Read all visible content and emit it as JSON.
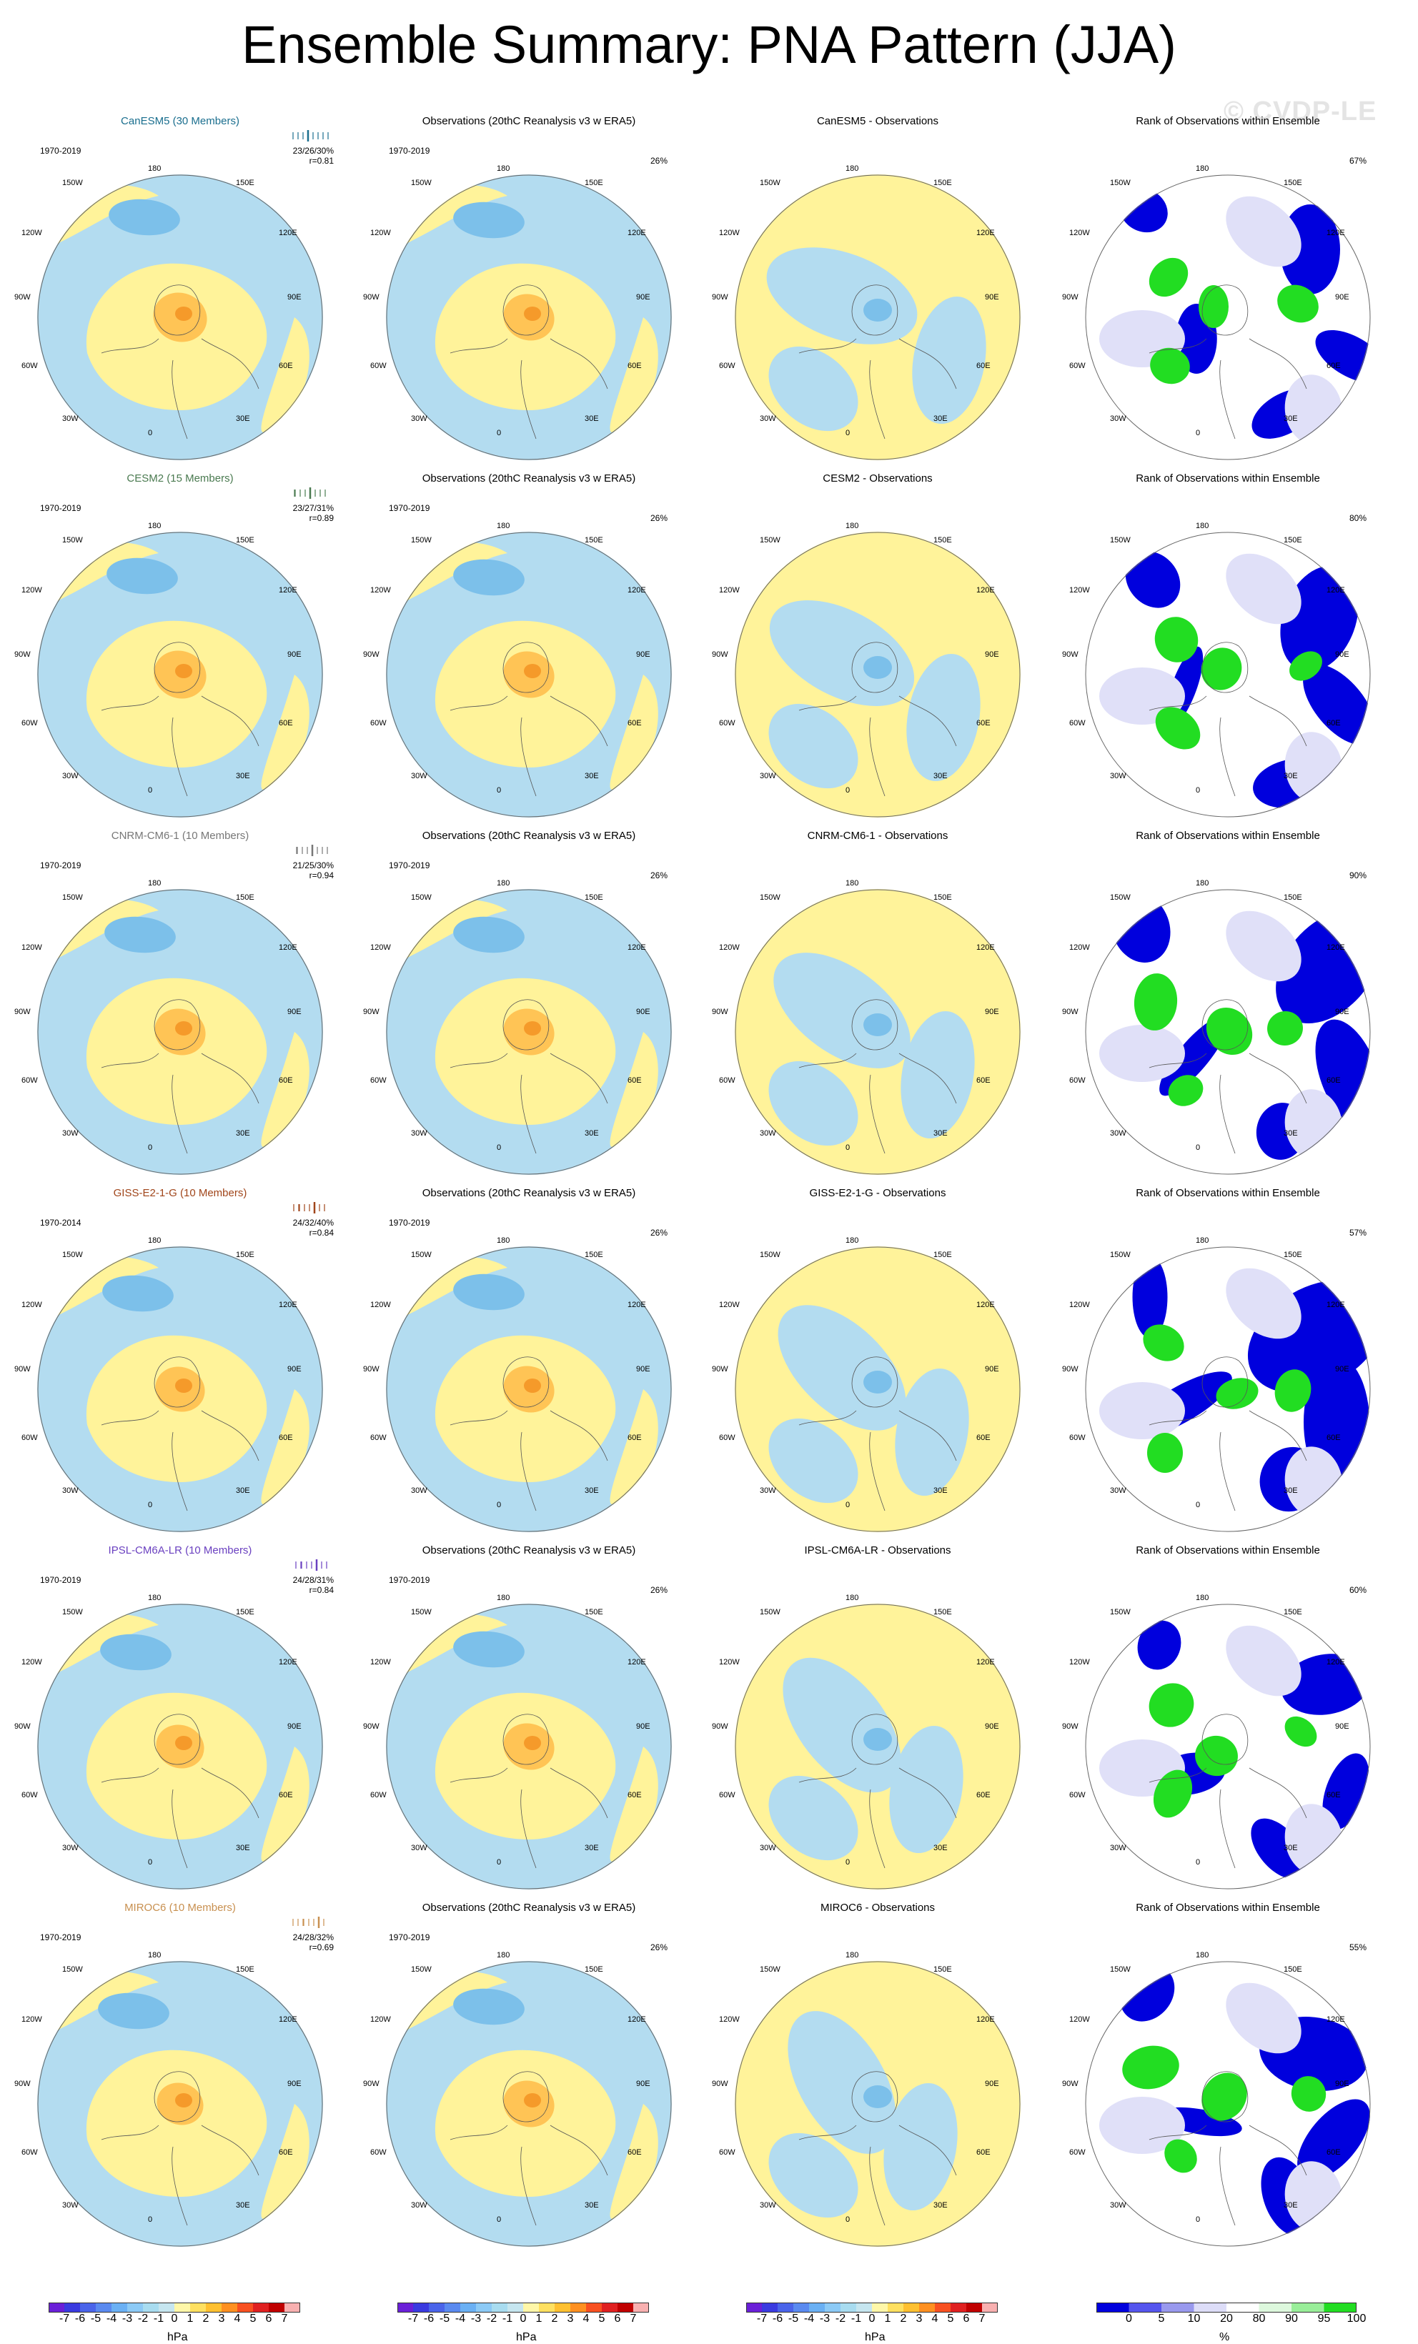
{
  "page": {
    "title": "Ensemble Summary: PNA Pattern (JJA)",
    "watermark": "© CVDP-LE"
  },
  "globe_labels": [
    "180",
    "150W",
    "150E",
    "120W",
    "120E",
    "90W",
    "90E",
    "60W",
    "60E",
    "30W",
    "30E",
    "0"
  ],
  "rows": [
    {
      "model": "CanESM5 (30 Members)",
      "model_color": "#1a6e8e",
      "period": "1970-2019",
      "stats": "23/26/30%",
      "r": "r=0.81",
      "obs_title": "Observations (20thC Reanalysis v3 w ERA5)",
      "obs_period": "1970-2019",
      "obs_pct": "26%",
      "diff_title": "CanESM5 - Observations",
      "rank_title": "Rank of Observations within Ensemble",
      "rank_pct": "67%"
    },
    {
      "model": "CESM2 (15 Members)",
      "model_color": "#4a7a50",
      "period": "1970-2019",
      "stats": "23/27/31%",
      "r": "r=0.89",
      "obs_title": "Observations (20thC Reanalysis v3 w ERA5)",
      "obs_period": "1970-2019",
      "obs_pct": "26%",
      "diff_title": "CESM2 - Observations",
      "rank_title": "Rank of Observations within Ensemble",
      "rank_pct": "80%"
    },
    {
      "model": "CNRM-CM6-1 (10 Members)",
      "model_color": "#777777",
      "period": "1970-2019",
      "stats": "21/25/30%",
      "r": "r=0.94",
      "obs_title": "Observations (20thC Reanalysis v3 w ERA5)",
      "obs_period": "1970-2019",
      "obs_pct": "26%",
      "diff_title": "CNRM-CM6-1 - Observations",
      "rank_title": "Rank of Observations within Ensemble",
      "rank_pct": "90%"
    },
    {
      "model": "GISS-E2-1-G (10 Members)",
      "model_color": "#a0451a",
      "period": "1970-2014",
      "stats": "24/32/40%",
      "r": "r=0.84",
      "obs_title": "Observations (20thC Reanalysis v3 w ERA5)",
      "obs_period": "1970-2019",
      "obs_pct": "26%",
      "diff_title": "GISS-E2-1-G - Observations",
      "rank_title": "Rank of Observations within Ensemble",
      "rank_pct": "57%"
    },
    {
      "model": "IPSL-CM6A-LR (10 Members)",
      "model_color": "#6a40c0",
      "period": "1970-2019",
      "stats": "24/28/31%",
      "r": "r=0.84",
      "obs_title": "Observations (20thC Reanalysis v3 w ERA5)",
      "obs_period": "1970-2019",
      "obs_pct": "26%",
      "diff_title": "IPSL-CM6A-LR - Observations",
      "rank_title": "Rank of Observations within Ensemble",
      "rank_pct": "60%"
    },
    {
      "model": "MIROC6 (10 Members)",
      "model_color": "#c89050",
      "period": "1970-2019",
      "stats": "24/28/32%",
      "r": "r=0.69",
      "obs_title": "Observations (20thC Reanalysis v3 w ERA5)",
      "obs_period": "1970-2019",
      "obs_pct": "26%",
      "diff_title": "MIROC6 - Observations",
      "rank_title": "Rank of Observations within Ensemble",
      "rank_pct": "55%"
    }
  ],
  "colorbars": {
    "hpa_labels": [
      "-7",
      "-6",
      "-5",
      "-4",
      "-3",
      "-2",
      "-1",
      "0",
      "1",
      "2",
      "3",
      "4",
      "5",
      "6",
      "7"
    ],
    "hpa_unit": "hPa",
    "hpa_colors": [
      "#6a1fd8",
      "#3a3ae0",
      "#4a64ea",
      "#5a8af0",
      "#6ab0f4",
      "#8ccaf6",
      "#a8dcf0",
      "#c6e6f0",
      "#fff7a8",
      "#ffe060",
      "#ffc030",
      "#ff9020",
      "#f85020",
      "#e02020",
      "#c00000",
      "#f8b0b0"
    ],
    "rank_labels": [
      "0",
      "5",
      "10",
      "20",
      "80",
      "90",
      "95",
      "100"
    ],
    "rank_unit": "%",
    "rank_colors": [
      "#0000dd",
      "#5555ee",
      "#9999ee",
      "#ddddf8",
      "#ffffff",
      "#ddf8dd",
      "#99ee99",
      "#22dd22"
    ]
  },
  "colors": {
    "positive_weak": "#fff39a",
    "negative_weak": "#b3dcf0",
    "negative_mid": "#7cc0ea",
    "positive_mid": "#ffc455",
    "positive_strong": "#f59a2a",
    "rank_low": "#0000dd",
    "rank_mid": "#e0e0f8",
    "rank_high": "#22dd22"
  }
}
